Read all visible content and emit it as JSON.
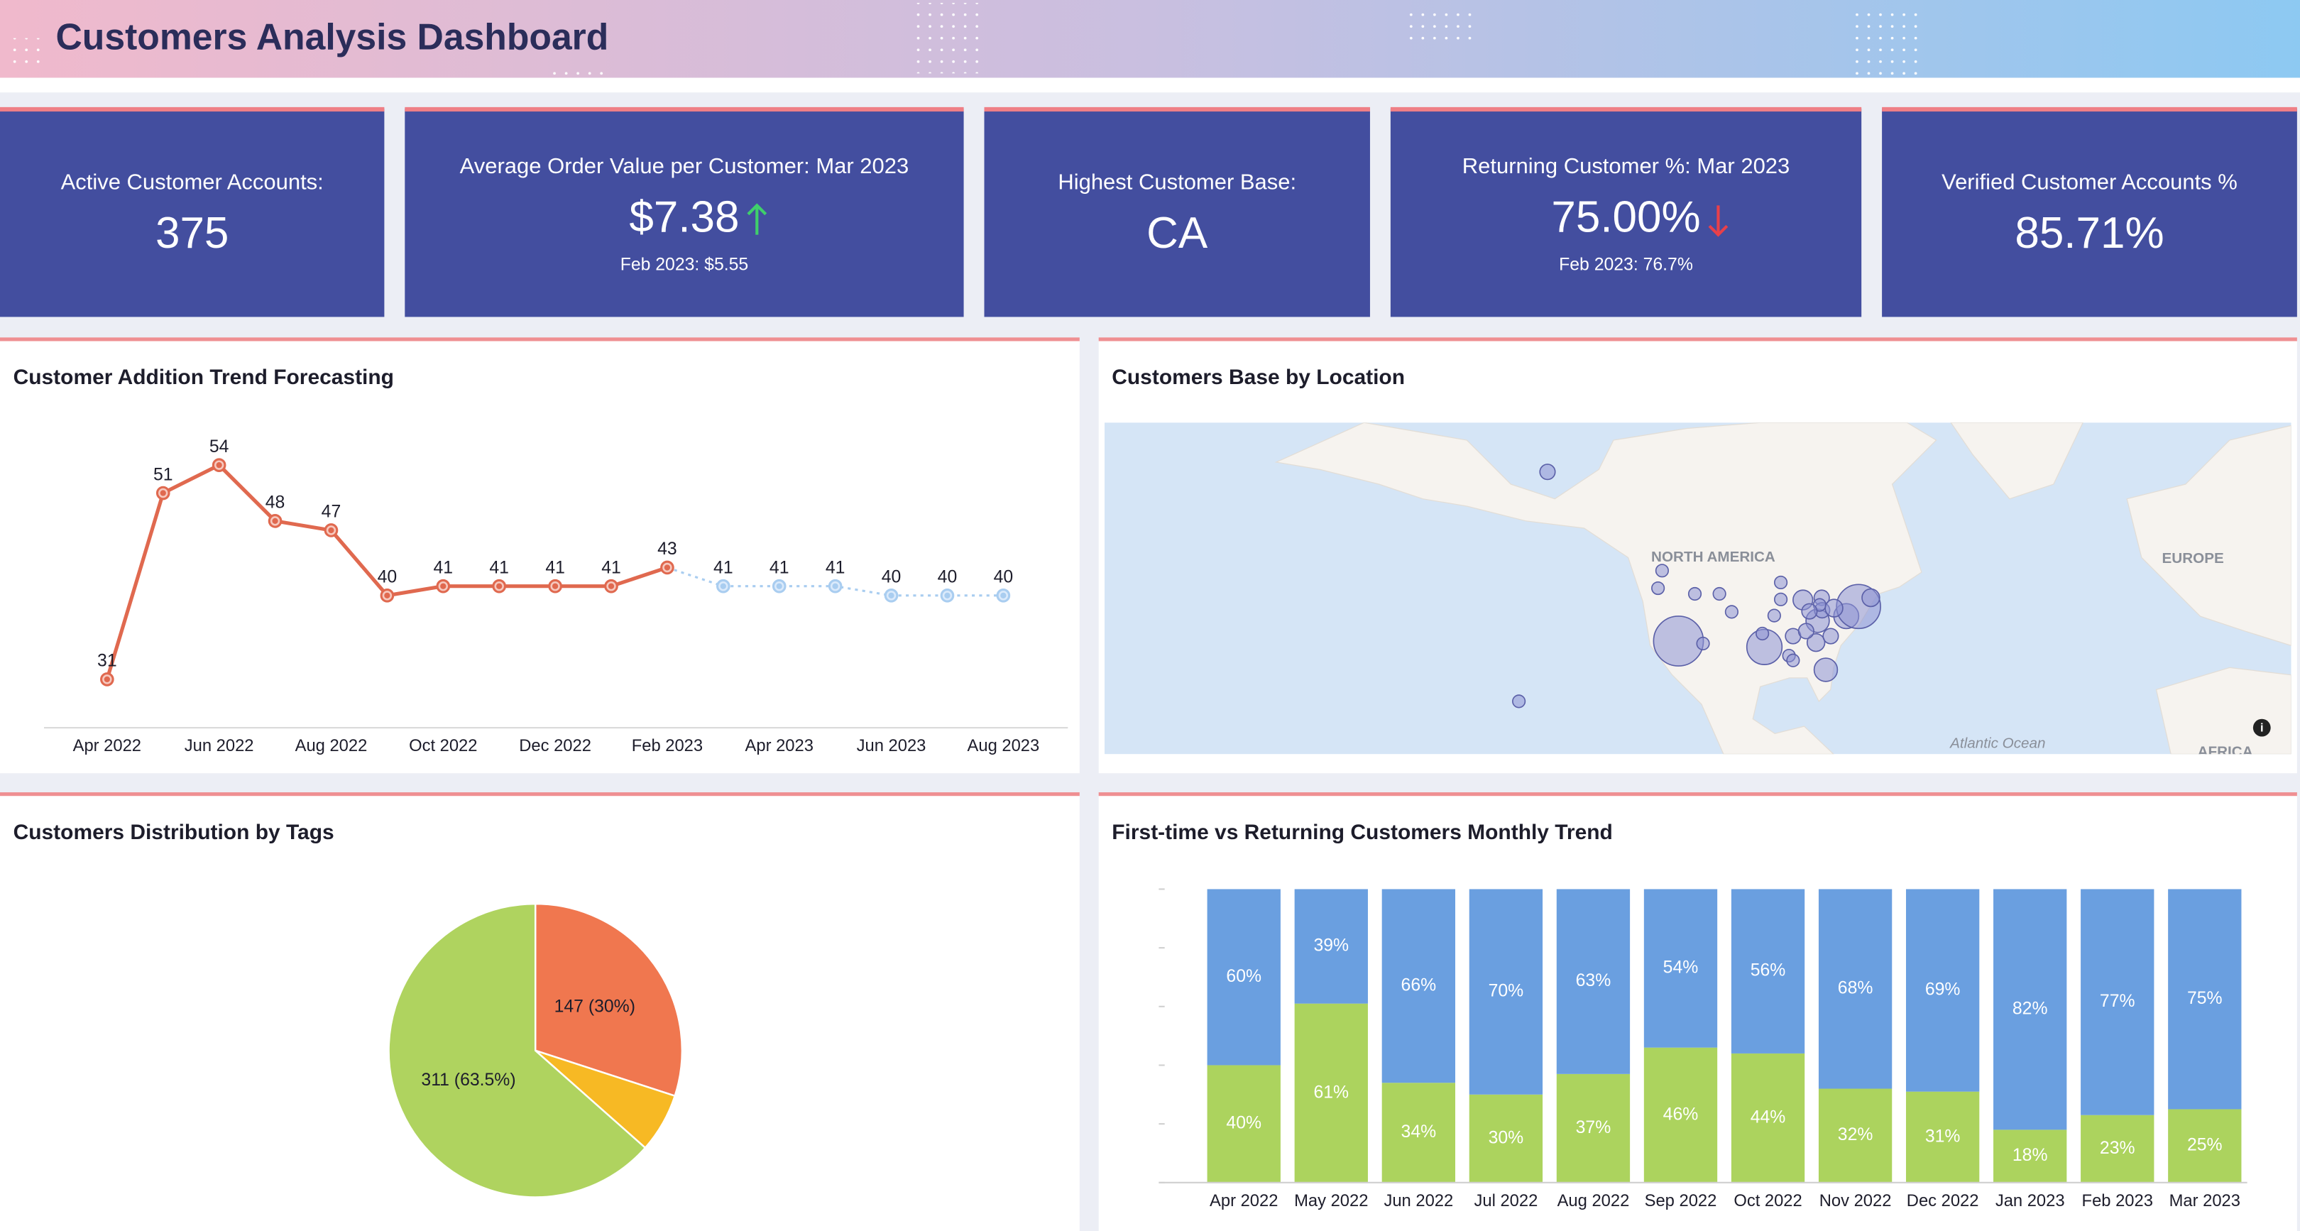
{
  "header": {
    "title": "Customers Analysis Dashboard"
  },
  "kpis": [
    {
      "label": "Active Customer Accounts:",
      "value": "375"
    },
    {
      "label": "Average Order Value per Customer: Mar 2023",
      "value": "$7.38",
      "trend": "up",
      "compare": "Feb 2023: $5.55"
    },
    {
      "label": "Highest Customer Base:",
      "value": "CA"
    },
    {
      "label": "Returning Customer %: Mar 2023",
      "value": "75.00%",
      "trend": "down",
      "compare": "Feb 2023: 76.7%"
    },
    {
      "label": "Verified Customer Accounts %",
      "value": "85.71%"
    }
  ],
  "chart_data": [
    {
      "type": "line",
      "title": "Customer Addition Trend Forecasting",
      "categories": [
        "Apr 2022",
        null,
        "Jun 2022",
        null,
        "Aug 2022",
        null,
        "Oct 2022",
        null,
        "Dec 2022",
        null,
        "Feb 2023",
        null,
        "Apr 2023",
        null,
        "Jun 2023",
        null,
        "Aug 2023"
      ],
      "series": [
        {
          "color": "#e0694f",
          "style": "solid",
          "values": [
            31,
            51,
            54,
            48,
            47,
            40,
            41,
            41,
            41,
            41,
            43,
            null,
            null,
            null,
            null,
            null,
            null
          ]
        },
        {
          "color": "#a9cdf0",
          "style": "dotted",
          "values": [
            null,
            null,
            null,
            null,
            null,
            null,
            null,
            null,
            null,
            null,
            null,
            41,
            41,
            41,
            40,
            40,
            40
          ]
        }
      ]
    },
    {
      "type": "bubble_map",
      "title": "Customers Base by Location",
      "regions": [
        "NORTH AMERICA",
        "EUROPE",
        "Atlantic Ocean",
        "AFRICA"
      ],
      "color": "#8e93d3",
      "lon": [
        -150,
        -157,
        -118,
        -122,
        -123,
        -112,
        -114,
        -108,
        -105,
        -97,
        -93,
        -93,
        -94.6,
        -97.5,
        -87.6,
        -84,
        -90,
        -91,
        -90,
        -82,
        -84.4,
        -86.8,
        -80.8,
        -83,
        -82.9,
        -77,
        -74,
        -71,
        -83.5,
        -80,
        -86
      ],
      "lat": [
        61,
        21,
        34,
        47,
        44,
        33.5,
        43,
        43,
        39.7,
        32.8,
        45,
        42,
        39,
        35.5,
        41.9,
        38,
        35,
        31,
        30,
        28,
        33.7,
        36,
        35,
        42.3,
        40,
        38.9,
        40.7,
        42.3,
        41,
        40.4,
        39.8
      ],
      "size": [
        3,
        2,
        32,
        2,
        2,
        2,
        2,
        2,
        2,
        16,
        2,
        2,
        2,
        2,
        5,
        7,
        3,
        2,
        2,
        7,
        4,
        3,
        3,
        3,
        3,
        8,
        25,
        4,
        2,
        4,
        3
      ]
    },
    {
      "type": "pie",
      "title": "Customers Distribution by Tags",
      "values": [
        147,
        32,
        311
      ],
      "value_labels": [
        "147 (30%)",
        null,
        "311 (63.5%)"
      ],
      "colors": [
        "#f0774f",
        "#f7b924",
        "#afd35f"
      ]
    },
    {
      "type": "bar",
      "stacked": true,
      "title": "First-time vs Returning Customers Monthly Trend",
      "categories": [
        "Apr 2022",
        "May 2022",
        "Jun 2022",
        "Jul 2022",
        "Aug 2022",
        "Sep 2022",
        "Oct 2022",
        "Nov 2022",
        "Dec 2022",
        "Jan 2023",
        "Feb 2023",
        "Mar 2023"
      ],
      "ylim": [
        0,
        100
      ],
      "yticks": [
        0,
        20,
        40,
        60,
        80,
        100
      ],
      "series": [
        {
          "color": "#acd35e",
          "values": [
            40,
            61,
            34,
            30,
            37,
            46,
            44,
            32,
            31,
            18,
            23,
            25
          ],
          "value_labels": [
            "40%",
            "61%",
            "34%",
            "30%",
            "37%",
            "46%",
            "44%",
            "32%",
            "31%",
            "18%",
            "23%",
            "25%"
          ]
        },
        {
          "color": "#6a9fe0",
          "values": [
            60,
            39,
            66,
            70,
            63,
            54,
            56,
            68,
            69,
            82,
            77,
            75
          ],
          "value_labels": [
            "60%",
            "39%",
            "66%",
            "70%",
            "63%",
            "54%",
            "56%",
            "68%",
            "69%",
            "82%",
            "77%",
            "75%"
          ]
        }
      ]
    }
  ]
}
